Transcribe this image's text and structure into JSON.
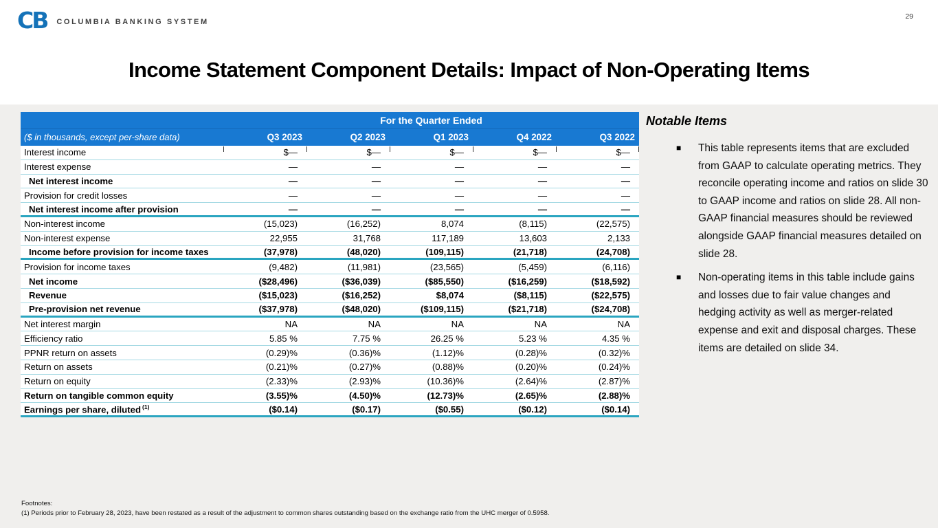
{
  "page": {
    "number": "29"
  },
  "brand": {
    "logo_text": "CB",
    "name": "COLUMBIA BANKING SYSTEM"
  },
  "title": "Income Statement Component Details: Impact of Non-Operating Items",
  "colors": {
    "header_blue": "#1879d2",
    "line_teal": "#2aa5c0",
    "line_light": "#a3d8e3",
    "background_gray": "#f0efed",
    "logo_blue": "#1472b8"
  },
  "table": {
    "span_header": "For the Quarter Ended",
    "corner_label": "($ in thousands, except per-share data)",
    "columns": [
      "Q3 2023",
      "Q2 2023",
      "Q1 2023",
      "Q4 2022",
      "Q3 2022"
    ],
    "rows": [
      {
        "label": "Interest income",
        "values": [
          "$—",
          "$—",
          "$—",
          "$—",
          "$—"
        ],
        "bold": false,
        "indent": false,
        "border": "thin"
      },
      {
        "label": "Interest expense",
        "values": [
          "—",
          "—",
          "—",
          "—",
          "—"
        ],
        "bold": false,
        "indent": false,
        "border": "thin"
      },
      {
        "label": "Net interest income",
        "values": [
          "—",
          "—",
          "—",
          "—",
          "—"
        ],
        "bold": true,
        "indent": true,
        "border": "thin"
      },
      {
        "label": "Provision for credit losses",
        "values": [
          "—",
          "—",
          "—",
          "—",
          "—"
        ],
        "bold": false,
        "indent": false,
        "border": "thin"
      },
      {
        "label": "Net interest income after provision",
        "values": [
          "—",
          "—",
          "—",
          "—",
          "—"
        ],
        "bold": true,
        "indent": true,
        "border": "thick"
      },
      {
        "label": "Non-interest income",
        "values": [
          "(15,023)",
          "(16,252)",
          "8,074",
          "(8,115)",
          "(22,575)"
        ],
        "bold": false,
        "indent": false,
        "border": "thin"
      },
      {
        "label": "Non-interest expense",
        "values": [
          "22,955",
          "31,768",
          "117,189",
          "13,603",
          "2,133"
        ],
        "bold": false,
        "indent": false,
        "border": "thin"
      },
      {
        "label": "Income before provision for income taxes",
        "values": [
          "(37,978)",
          "(48,020)",
          "(109,115)",
          "(21,718)",
          "(24,708)"
        ],
        "bold": true,
        "indent": true,
        "border": "thick"
      },
      {
        "label": "Provision for income taxes",
        "values": [
          "(9,482)",
          "(11,981)",
          "(23,565)",
          "(5,459)",
          "(6,116)"
        ],
        "bold": false,
        "indent": false,
        "border": "thin"
      },
      {
        "label": "Net income",
        "values": [
          "($28,496)",
          "($36,039)",
          "($85,550)",
          "($16,259)",
          "($18,592)"
        ],
        "bold": true,
        "indent": true,
        "border": "thin"
      },
      {
        "label": "Revenue",
        "values": [
          "($15,023)",
          "($16,252)",
          "$8,074",
          "($8,115)",
          "($22,575)"
        ],
        "bold": true,
        "indent": true,
        "border": "thin"
      },
      {
        "label": "Pre-provision net revenue",
        "values": [
          "($37,978)",
          "($48,020)",
          "($109,115)",
          "($21,718)",
          "($24,708)"
        ],
        "bold": true,
        "indent": true,
        "border": "thick"
      },
      {
        "label": "Net interest margin",
        "values": [
          "NA",
          "NA",
          "NA",
          "NA",
          "NA"
        ],
        "bold": false,
        "indent": false,
        "border": "thin"
      },
      {
        "label": "Efficiency ratio",
        "values": [
          "5.85 %",
          "7.75 %",
          "26.25 %",
          "5.23 %",
          "4.35 %"
        ],
        "bold": false,
        "indent": false,
        "border": "thin"
      },
      {
        "label": "PPNR return on assets",
        "values": [
          "(0.29)%",
          "(0.36)%",
          "(1.12)%",
          "(0.28)%",
          "(0.32)%"
        ],
        "bold": false,
        "indent": false,
        "border": "thin"
      },
      {
        "label": "Return on assets",
        "values": [
          "(0.21)%",
          "(0.27)%",
          "(0.88)%",
          "(0.20)%",
          "(0.24)%"
        ],
        "bold": false,
        "indent": false,
        "border": "thin"
      },
      {
        "label": "Return on equity",
        "values": [
          "(2.33)%",
          "(2.93)%",
          "(10.36)%",
          "(2.64)%",
          "(2.87)%"
        ],
        "bold": false,
        "indent": false,
        "border": "thin"
      },
      {
        "label": "Return on tangible common equity",
        "values": [
          "(3.55)%",
          "(4.50)%",
          "(12.73)%",
          "(2.65)%",
          "(2.88)%"
        ],
        "bold": true,
        "indent": false,
        "border": "thin"
      },
      {
        "label": "Earnings per share, diluted",
        "sup": "(1)",
        "values": [
          "($0.14)",
          "($0.17)",
          "($0.55)",
          "($0.12)",
          "($0.14)"
        ],
        "bold": true,
        "indent": false,
        "border": "thick"
      }
    ]
  },
  "notable": {
    "title": "Notable Items",
    "bullet_marker": "■",
    "bullets": [
      "This table represents items that are excluded from GAAP to calculate operating metrics. They reconcile operating income and ratios on slide 30 to GAAP income and ratios on slide 28. All non-GAAP financial measures should be reviewed alongside GAAP financial measures detailed on slide 28.",
      "Non-operating items in this table include gains and losses due to fair value changes and hedging activity as well as merger-related expense and exit and disposal charges. These items are detailed on slide 34."
    ]
  },
  "footnotes": {
    "heading": "Footnotes:",
    "items": [
      "(1) Periods prior to February 28, 2023, have been restated as a result of the adjustment to common shares outstanding based on the exchange ratio from the UHC merger of 0.5958."
    ]
  }
}
